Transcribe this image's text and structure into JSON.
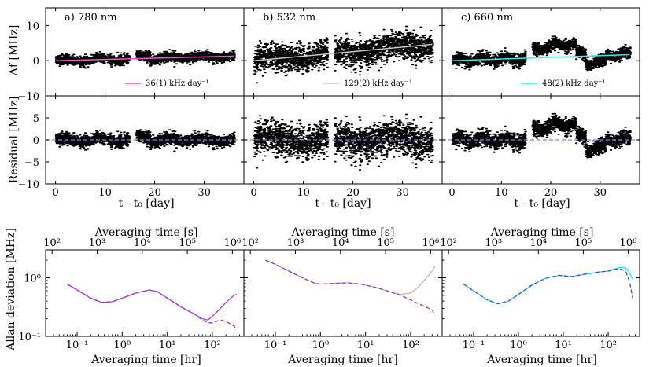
{
  "chart_data": [
    {
      "type": "scatter",
      "row": "frequency-drift",
      "panels": [
        {
          "id": "a",
          "title": "a) 780 nm",
          "fit_color": "#ff4fd8",
          "fit_label": "36(1) kHz day⁻¹",
          "drift_mhz_per_day": 0.036,
          "offset": 0.0,
          "spread": 1.2,
          "gaps": [
            [
              10.1,
              10.4
            ],
            [
              14.8,
              16.2
            ]
          ]
        },
        {
          "id": "b",
          "title": "b) 532 nm",
          "fit_color": "#c8c8c8",
          "fit_label": "129(2) kHz day⁻¹",
          "drift_mhz_per_day": 0.129,
          "offset": 0.0,
          "spread": 3.3,
          "gaps": [
            [
              10.1,
              10.4
            ],
            [
              14.8,
              16.2
            ]
          ]
        },
        {
          "id": "c",
          "title": "c) 660 nm",
          "fit_color": "#33f0e8",
          "fit_label": "48(2) kHz day⁻¹",
          "drift_mhz_per_day": 0.048,
          "offset": 0.0,
          "spread": 1.5,
          "gaps": [
            [
              10.1,
              10.4
            ],
            [
              14.8,
              16.2
            ]
          ]
        }
      ],
      "ylabel": "Δf [MHz]",
      "xlim": [
        -2,
        38
      ],
      "ylim": [
        -10,
        15
      ],
      "yticks": [
        -10,
        0,
        10
      ],
      "xticks": [
        0,
        10,
        20,
        30
      ]
    },
    {
      "type": "scatter",
      "row": "residual",
      "ylabel": "Residual [MHz]",
      "xlabel": "t - t₀ [day]",
      "xlim": [
        -2,
        38
      ],
      "ylim": [
        -10,
        10
      ],
      "yticks": [
        -10,
        -5,
        0,
        5
      ],
      "xticks": [
        0,
        10,
        20,
        30
      ],
      "zero_line_color": "#8a7dff"
    },
    {
      "type": "line",
      "row": "allan-deviation",
      "ylabel": "Allan deviation [MHz]",
      "xlabel": "Averaging time [hr]",
      "top_xlabel": "Averaging time [s]",
      "xscale": "log",
      "yscale": "log",
      "xlim_hr": [
        0.02,
        500
      ],
      "ylim": [
        0.1,
        3
      ],
      "xticks_hr_labels": [
        "10⁻¹",
        "10⁰",
        "10¹",
        "10²"
      ],
      "xticks_s_labels": [
        "10²",
        "10³",
        "10⁴",
        "10⁵",
        "10⁶"
      ],
      "yticks_labels": [
        "10⁻¹",
        "10⁰"
      ],
      "series": [
        {
          "panel": "a",
          "solid": {
            "color": "#cc33cc",
            "x": [
              0.06,
              0.1,
              0.2,
              0.35,
              0.6,
              1,
              2,
              4,
              6,
              10,
              20,
              40,
              60,
              80,
              100,
              150,
              200,
              300,
              350
            ],
            "y": [
              0.78,
              0.62,
              0.45,
              0.38,
              0.39,
              0.45,
              0.55,
              0.62,
              0.58,
              0.45,
              0.32,
              0.24,
              0.2,
              0.19,
              0.22,
              0.3,
              0.38,
              0.5,
              0.52
            ]
          },
          "dashed": {
            "color": "#7b3fe0",
            "x": [
              0.06,
              0.1,
              0.2,
              0.35,
              0.6,
              1,
              2,
              4,
              6,
              10,
              20,
              40,
              60,
              80,
              100,
              150,
              200,
              300,
              350
            ],
            "y": [
              0.78,
              0.62,
              0.45,
              0.38,
              0.39,
              0.45,
              0.55,
              0.62,
              0.58,
              0.45,
              0.32,
              0.24,
              0.19,
              0.17,
              0.17,
              0.19,
              0.18,
              0.15,
              0.13
            ]
          }
        },
        {
          "panel": "b",
          "solid": {
            "color": "#bbbbbb",
            "x": [
              0.06,
              0.1,
              0.2,
              0.4,
              0.7,
              1,
              2,
              4,
              8,
              15,
              30,
              60,
              100,
              150,
              200,
              300,
              350
            ],
            "y": [
              2.0,
              1.7,
              1.3,
              1.0,
              0.82,
              0.78,
              0.8,
              0.82,
              0.78,
              0.7,
              0.6,
              0.52,
              0.55,
              0.7,
              0.9,
              1.3,
              1.6
            ]
          },
          "dashed": {
            "color": "#7b3fe0",
            "x": [
              0.06,
              0.1,
              0.2,
              0.4,
              0.7,
              1,
              2,
              4,
              8,
              15,
              30,
              60,
              100,
              150,
              200,
              300,
              350
            ],
            "y": [
              2.0,
              1.7,
              1.3,
              1.0,
              0.82,
              0.78,
              0.8,
              0.82,
              0.78,
              0.7,
              0.6,
              0.5,
              0.42,
              0.36,
              0.33,
              0.28,
              0.23
            ]
          }
        },
        {
          "panel": "c",
          "solid": {
            "color": "#22e6f0",
            "x": [
              0.06,
              0.1,
              0.2,
              0.35,
              0.6,
              1,
              2,
              4,
              8,
              15,
              30,
              60,
              100,
              150,
              200,
              250,
              300,
              350
            ],
            "y": [
              0.78,
              0.6,
              0.42,
              0.36,
              0.4,
              0.52,
              0.75,
              0.98,
              1.1,
              1.05,
              1.15,
              1.25,
              1.3,
              1.45,
              1.52,
              1.45,
              1.2,
              0.95
            ]
          },
          "dashed": {
            "color": "#3a4fe0",
            "x": [
              0.06,
              0.1,
              0.2,
              0.35,
              0.6,
              1,
              2,
              4,
              8,
              15,
              30,
              60,
              100,
              150,
              200,
              250,
              300,
              350
            ],
            "y": [
              0.78,
              0.6,
              0.42,
              0.36,
              0.4,
              0.52,
              0.75,
              0.98,
              1.1,
              1.05,
              1.15,
              1.25,
              1.3,
              1.4,
              1.4,
              1.25,
              0.85,
              0.45
            ]
          }
        }
      ]
    }
  ]
}
